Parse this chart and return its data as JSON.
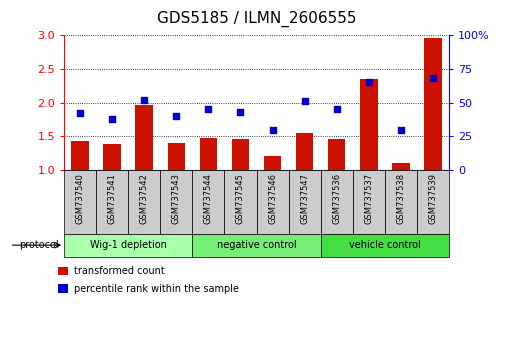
{
  "title": "GDS5185 / ILMN_2606555",
  "samples": [
    "GSM737540",
    "GSM737541",
    "GSM737542",
    "GSM737543",
    "GSM737544",
    "GSM737545",
    "GSM737546",
    "GSM737547",
    "GSM737536",
    "GSM737537",
    "GSM737538",
    "GSM737539"
  ],
  "transformed_count": [
    1.43,
    1.38,
    1.97,
    1.4,
    1.47,
    1.46,
    1.2,
    1.55,
    1.46,
    2.35,
    1.1,
    2.96
  ],
  "percentile_rank": [
    42,
    38,
    52,
    40,
    45,
    43,
    30,
    51,
    45,
    65,
    30,
    68
  ],
  "groups": [
    {
      "label": "Wig-1 depletion",
      "start": 0,
      "end": 4,
      "color": "#aaffaa"
    },
    {
      "label": "negative control",
      "start": 4,
      "end": 8,
      "color": "#77ee77"
    },
    {
      "label": "vehicle control",
      "start": 8,
      "end": 12,
      "color": "#44dd44"
    }
  ],
  "ylim_left": [
    1.0,
    3.0
  ],
  "ylim_right": [
    0,
    100
  ],
  "yticks_left": [
    1.0,
    1.5,
    2.0,
    2.5,
    3.0
  ],
  "yticks_right": [
    0,
    25,
    50,
    75,
    100
  ],
  "bar_color": "#cc1100",
  "dot_color": "#0000cc",
  "bar_width": 0.55,
  "background_color": "#ffffff",
  "plot_bg_color": "#ffffff",
  "sample_box_color": "#cccccc",
  "legend_items": [
    {
      "label": "transformed count",
      "color": "#cc1100"
    },
    {
      "label": "percentile rank within the sample",
      "color": "#0000cc"
    }
  ],
  "title_fontsize": 11,
  "tick_fontsize": 8,
  "label_fontsize": 6,
  "proto_fontsize": 7,
  "legend_fontsize": 7
}
